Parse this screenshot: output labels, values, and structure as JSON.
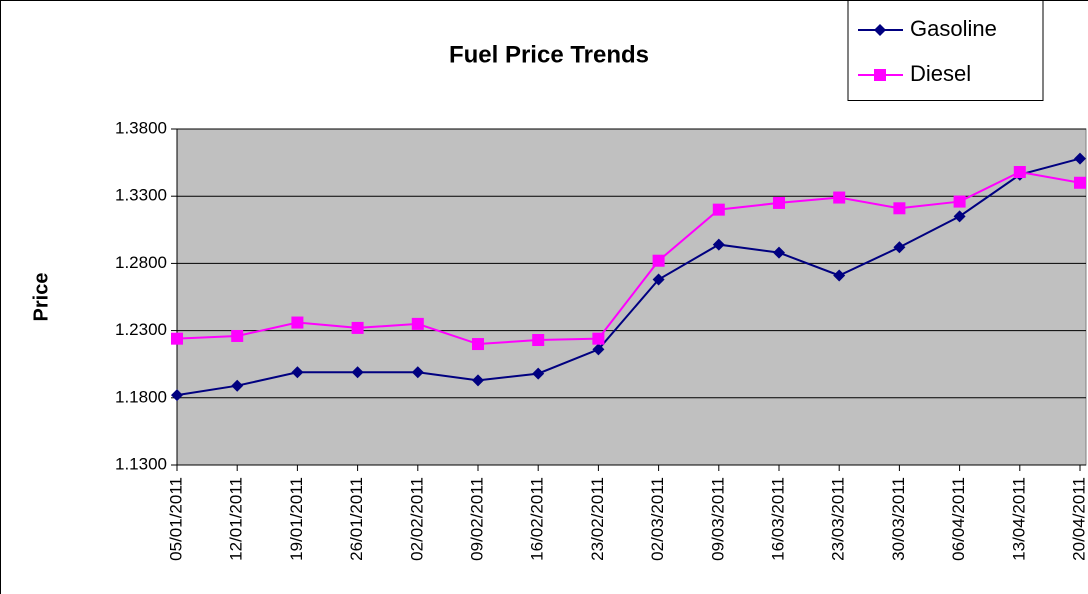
{
  "chart_data": {
    "type": "line",
    "title": "Fuel Price Trends",
    "ylabel": "Price",
    "categories": [
      "05/01/2011",
      "12/01/2011",
      "19/01/2011",
      "26/01/2011",
      "02/02/2011",
      "09/02/2011",
      "16/02/2011",
      "23/02/2011",
      "02/03/2011",
      "09/03/2011",
      "16/03/2011",
      "23/03/2011",
      "30/03/2011",
      "06/04/2011",
      "13/04/2011",
      "20/04/2011"
    ],
    "series": [
      {
        "name": "Gasoline",
        "color": "#000080",
        "marker": "diamond",
        "values": [
          1.182,
          1.189,
          1.199,
          1.199,
          1.199,
          1.193,
          1.198,
          1.216,
          1.268,
          1.294,
          1.288,
          1.271,
          1.292,
          1.315,
          1.346,
          1.358
        ]
      },
      {
        "name": "Diesel",
        "color": "#ff00ff",
        "marker": "square",
        "values": [
          1.224,
          1.226,
          1.236,
          1.232,
          1.235,
          1.22,
          1.223,
          1.224,
          1.282,
          1.32,
          1.325,
          1.329,
          1.321,
          1.326,
          1.348,
          1.34
        ]
      }
    ],
    "ylim": [
      1.13,
      1.38
    ],
    "yticks": [
      {
        "value": 1.13,
        "label": "1.1300"
      },
      {
        "value": 1.18,
        "label": "1.1800"
      },
      {
        "value": 1.23,
        "label": "1.2300"
      },
      {
        "value": 1.28,
        "label": "1.2800"
      },
      {
        "value": 1.33,
        "label": "1.3300"
      },
      {
        "value": 1.38,
        "label": "1.3800"
      }
    ],
    "grid": true,
    "legend": "upper right"
  }
}
